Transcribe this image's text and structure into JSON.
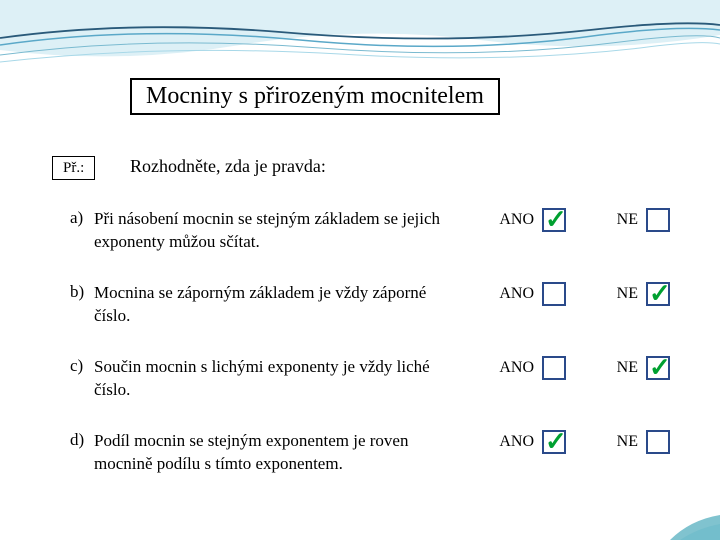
{
  "title": "Mocniny s přirozeným mocnitelem",
  "example_label": "Př.:",
  "instruction": "Rozhodněte, zda je pravda:",
  "ano_label": "ANO",
  "ne_label": "NE",
  "questions": [
    {
      "letter": "a)",
      "text": "Při násobení mocnin se stejným základem se jejich exponenty můžou sčítat.",
      "ano_checked": true,
      "ne_checked": false
    },
    {
      "letter": "b)",
      "text": "Mocnina se záporným základem je vždy záporné číslo.",
      "ano_checked": false,
      "ne_checked": true
    },
    {
      "letter": "c)",
      "text": "Součin mocnin s lichými exponenty je vždy liché číslo.",
      "ano_checked": false,
      "ne_checked": true
    },
    {
      "letter": "d)",
      "text": "Podíl mocnin se stejným exponentem je roven mocnině podílu s tímto exponentem.",
      "ano_checked": true,
      "ne_checked": false
    }
  ],
  "colors": {
    "wave_light": "#a8d8e8",
    "wave_mid": "#5aa8c8",
    "wave_dark": "#2a5a7a",
    "checkbox_border": "#2a4a8a",
    "checkmark": "#00a030",
    "accent_teal": "#4aaaba"
  }
}
